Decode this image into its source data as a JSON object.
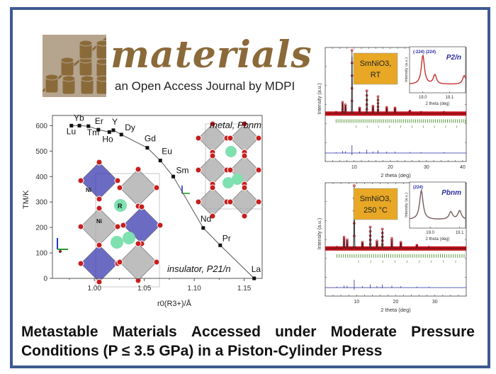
{
  "journal": {
    "name": "materials",
    "tagline": "an Open Access Journal by MDPI"
  },
  "title": {
    "line1_words": [
      "Metastable",
      "Materials",
      "Accessed",
      "under",
      "Moderate",
      "Pressure"
    ],
    "line2": "Conditions (P ≤ 3.5 GPa) in a Piston-Cylinder Press"
  },
  "colors": {
    "frame": "#3f5a92",
    "logo_text": "#8b6a3a",
    "logo_bg": "#b5a48e",
    "label_box": "#e8a825",
    "obs_red": "#c0101a",
    "ticks_green": "#4f8f2e",
    "diff_blue": "#2a2aa0",
    "inset_title": "#2a2aa0",
    "octa_blue": "#3a3ab0",
    "octa_gray": "#a8a8a8",
    "atom_o": "#c81e1e",
    "atom_r": "#7fe0b0"
  },
  "chart_data": [
    {
      "type": "line",
      "title": "",
      "xlabel": "r0(R3+)/Å",
      "ylabel": "TM/K",
      "xlim": [
        0.958,
        1.168
      ],
      "ylim": [
        0,
        640
      ],
      "xticks": [
        "1.00",
        "1.05",
        "1.10",
        "1.15"
      ],
      "xtick_values": [
        1.0,
        1.05,
        1.1,
        1.15
      ],
      "yticks": [
        "0",
        "100",
        "200",
        "300",
        "400",
        "500",
        "600"
      ],
      "ytick_values": [
        0,
        100,
        200,
        300,
        400,
        500,
        600
      ],
      "grid": false,
      "annotations": [
        "metal, Pbnm",
        "insulator, P21/n"
      ],
      "points": [
        {
          "label": "Lu",
          "x": 0.977,
          "y": 600
        },
        {
          "label": "Yb",
          "x": 0.985,
          "y": 600
        },
        {
          "label": "Tm",
          "x": 0.994,
          "y": 598
        },
        {
          "label": "Er",
          "x": 1.004,
          "y": 584
        },
        {
          "label": "Ho",
          "x": 1.015,
          "y": 575
        },
        {
          "label": "Y",
          "x": 1.019,
          "y": 582
        },
        {
          "label": "Dy",
          "x": 1.027,
          "y": 565
        },
        {
          "label": "Gd",
          "x": 1.053,
          "y": 513
        },
        {
          "label": "Eu",
          "x": 1.066,
          "y": 463
        },
        {
          "label": "Sm",
          "x": 1.079,
          "y": 400
        },
        {
          "label": "Nd",
          "x": 1.109,
          "y": 198
        },
        {
          "label": "Pr",
          "x": 1.126,
          "y": 130
        },
        {
          "label": "La",
          "x": 1.16,
          "y": 0
        }
      ],
      "structure_labels": [
        "Ni",
        "Ni",
        "R"
      ]
    },
    {
      "type": "line",
      "panel": "top",
      "label_box": [
        "SmNiO3,",
        "RT"
      ],
      "xlabel": "2 theta (deg)",
      "ylabel": "Intensity (a.u.)",
      "xlim": [
        2,
        41
      ],
      "xticks": [
        "10",
        "20",
        "30",
        "40"
      ],
      "xtick_values": [
        10,
        20,
        30,
        40
      ],
      "peaks": [
        {
          "x": 5.0,
          "h": 0.02
        },
        {
          "x": 6.8,
          "h": 0.18
        },
        {
          "x": 7.6,
          "h": 0.14
        },
        {
          "x": 9.4,
          "h": 1.0
        },
        {
          "x": 11.5,
          "h": 0.09
        },
        {
          "x": 13.5,
          "h": 0.36
        },
        {
          "x": 15.2,
          "h": 0.12
        },
        {
          "x": 16.6,
          "h": 0.27
        },
        {
          "x": 19.0,
          "h": 0.1
        },
        {
          "x": 21.3,
          "h": 0.09
        },
        {
          "x": 25.4,
          "h": 0.04
        },
        {
          "x": 28.5,
          "h": 0.02
        },
        {
          "x": 34.8,
          "h": 0.02
        }
      ],
      "inset": {
        "title": "P2/n",
        "xlabel": "2 theta (deg)",
        "ylabel": "Intensity (a.u.)",
        "xticks": [
          "19.0",
          "19.1"
        ],
        "xtick_values": [
          19.0,
          19.1
        ],
        "xlim": [
          18.95,
          19.16
        ],
        "peak_labels": [
          "(-224)",
          "(224)"
        ],
        "peaks": [
          {
            "x": 19.0,
            "h": 1.0
          },
          {
            "x": 19.045,
            "h": 0.32
          },
          {
            "x": 19.155,
            "h": 0.3
          }
        ]
      }
    },
    {
      "type": "line",
      "panel": "bottom",
      "label_box": [
        "SmNiO3,",
        "250 °C"
      ],
      "xlabel": "2 theta (deg)",
      "ylabel": "Intensity (a.u.)",
      "xlim": [
        2,
        38
      ],
      "xticks": [
        "10",
        "20",
        "30"
      ],
      "xtick_values": [
        10,
        20,
        30
      ],
      "peaks": [
        {
          "x": 5.0,
          "h": 0.02
        },
        {
          "x": 6.8,
          "h": 0.18
        },
        {
          "x": 7.6,
          "h": 0.14
        },
        {
          "x": 9.4,
          "h": 1.0
        },
        {
          "x": 11.5,
          "h": 0.1
        },
        {
          "x": 13.5,
          "h": 0.34
        },
        {
          "x": 15.2,
          "h": 0.12
        },
        {
          "x": 16.6,
          "h": 0.31
        },
        {
          "x": 19.0,
          "h": 0.16
        },
        {
          "x": 21.3,
          "h": 0.1
        },
        {
          "x": 25.4,
          "h": 0.05
        },
        {
          "x": 28.5,
          "h": 0.02
        }
      ],
      "inset": {
        "title": "Pbnm",
        "xlabel": "2 theta (deg)",
        "ylabel": "Intensity (a.u.)",
        "xticks": [
          "19.0",
          "19.1"
        ],
        "xtick_values": [
          19.0,
          19.1
        ],
        "xlim": [
          18.93,
          19.12
        ],
        "peak_labels": [
          "(224)"
        ],
        "peaks": [
          {
            "x": 18.97,
            "h": 1.0
          },
          {
            "x": 19.07,
            "h": 0.26
          },
          {
            "x": 19.1,
            "h": 0.3
          }
        ]
      }
    }
  ]
}
